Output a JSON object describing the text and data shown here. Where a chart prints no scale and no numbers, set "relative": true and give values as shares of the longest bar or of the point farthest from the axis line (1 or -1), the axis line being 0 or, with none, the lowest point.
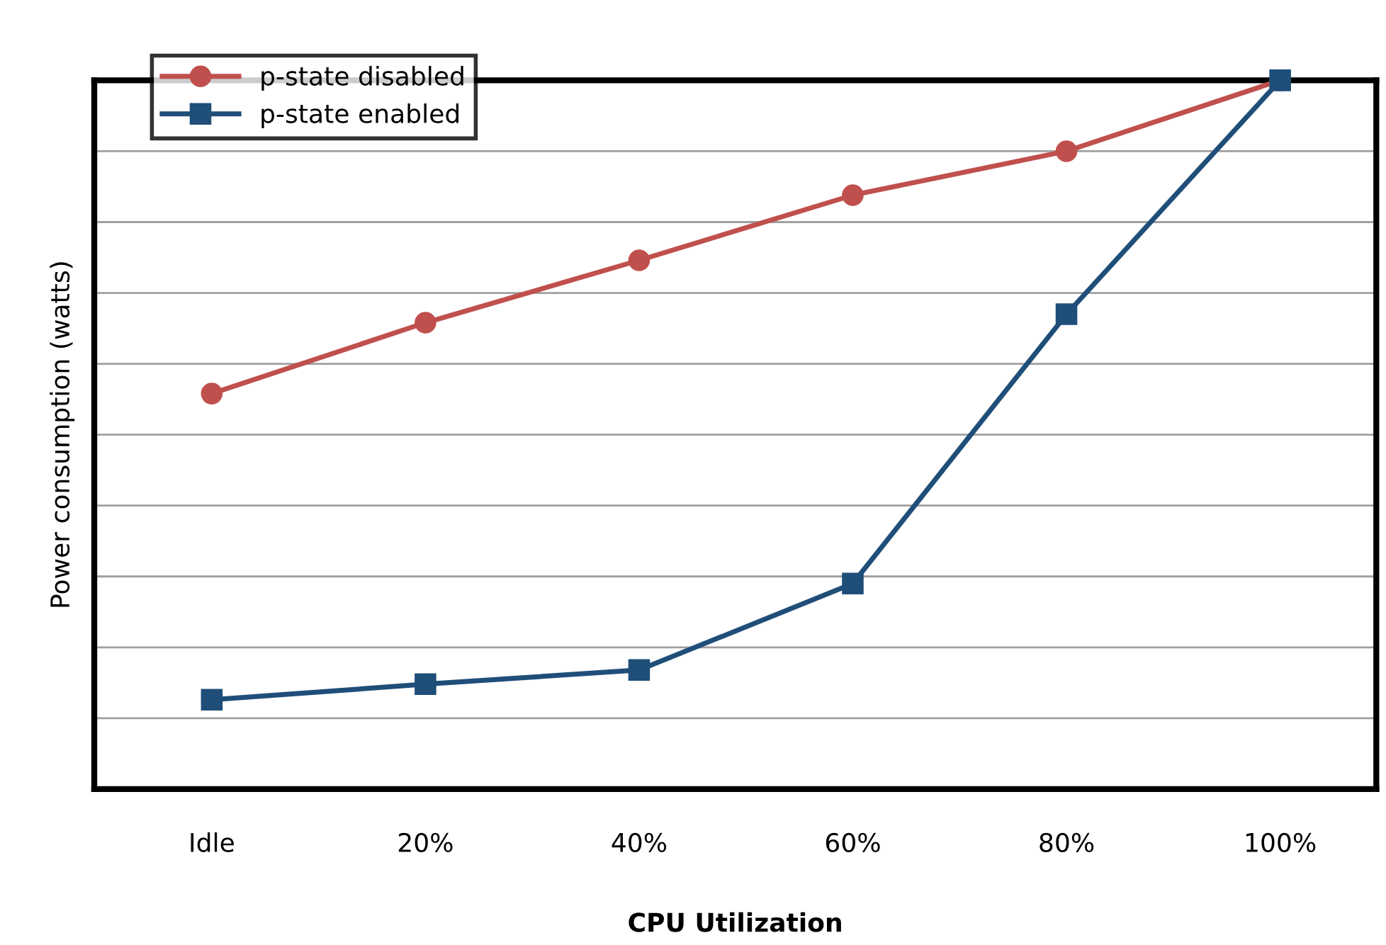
{
  "chart_data": {
    "type": "line",
    "xlabel": "CPU Utilization",
    "ylabel": "Power consumption (watts)",
    "categories": [
      "Idle",
      "20%",
      "40%",
      "60%",
      "80%",
      "100%"
    ],
    "relative": true,
    "grid": "y",
    "legend": "top left",
    "line_style": "solid",
    "series": [
      {
        "name": "p-state disabled",
        "color": "#c0504d",
        "marker": "circle",
        "values": [
          0.558,
          0.658,
          0.746,
          0.838,
          0.9,
          1
        ]
      },
      {
        "name": "p-state enabled",
        "color": "#1f4e79",
        "marker": "square",
        "values": [
          0.126,
          0.148,
          0.168,
          0.29,
          0.67,
          1
        ]
      }
    ]
  }
}
